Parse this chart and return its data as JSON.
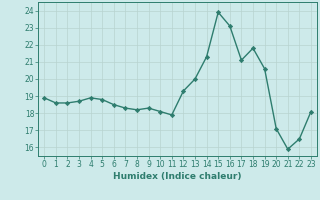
{
  "x": [
    0,
    1,
    2,
    3,
    4,
    5,
    6,
    7,
    8,
    9,
    10,
    11,
    12,
    13,
    14,
    15,
    16,
    17,
    18,
    19,
    20,
    21,
    22,
    23
  ],
  "y": [
    18.9,
    18.6,
    18.6,
    18.7,
    18.9,
    18.8,
    18.5,
    18.3,
    18.2,
    18.3,
    18.1,
    17.9,
    19.3,
    20.0,
    21.3,
    23.9,
    23.1,
    21.1,
    21.8,
    20.6,
    17.1,
    15.9,
    16.5,
    18.1
  ],
  "line_color": "#2e7d6e",
  "marker": "D",
  "marker_size": 2.2,
  "line_width": 1.0,
  "bg_color": "#cdeaea",
  "grid_color": "#b8d4d0",
  "xlabel": "Humidex (Indice chaleur)",
  "xlim": [
    -0.5,
    23.5
  ],
  "ylim": [
    15.5,
    24.5
  ],
  "yticks": [
    16,
    17,
    18,
    19,
    20,
    21,
    22,
    23,
    24
  ],
  "xticks": [
    0,
    1,
    2,
    3,
    4,
    5,
    6,
    7,
    8,
    9,
    10,
    11,
    12,
    13,
    14,
    15,
    16,
    17,
    18,
    19,
    20,
    21,
    22,
    23
  ],
  "tick_color": "#2e7d6e",
  "label_color": "#2e7d6e",
  "spine_color": "#2e7d6e",
  "xlabel_fontsize": 6.5,
  "tick_fontsize": 5.5
}
